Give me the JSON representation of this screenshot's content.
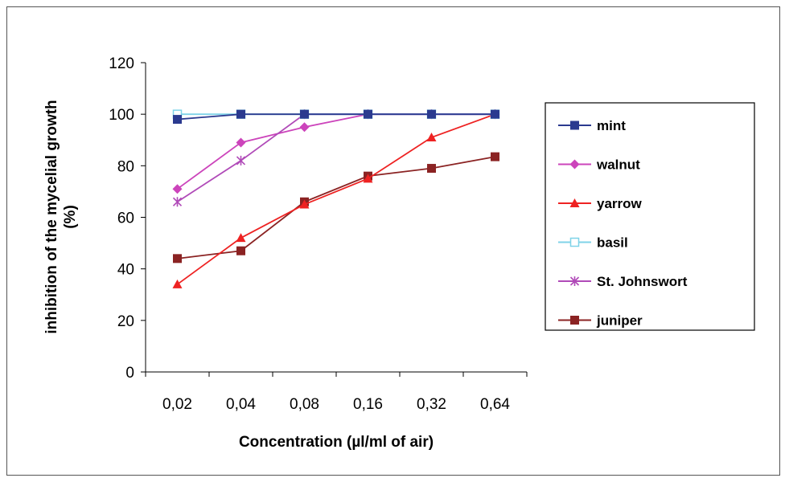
{
  "chart_data": {
    "type": "line",
    "title": "",
    "xlabel": "Concentration (µl/ml of air)",
    "ylabel": "inhibition of the mycelial growth (%)",
    "ylabel_lines": [
      "inhibition of the mycelial growth",
      "(%)"
    ],
    "categories": [
      "0,02",
      "0,04",
      "0,08",
      "0,16",
      "0,32",
      "0,64"
    ],
    "ylim": [
      0,
      120
    ],
    "yticks": [
      0,
      20,
      40,
      60,
      80,
      100,
      120
    ],
    "grid": false,
    "legend_position": "right",
    "series": [
      {
        "name": "mint",
        "color": "#2b3a8f",
        "marker": "square",
        "values": [
          98,
          100,
          100,
          100,
          100,
          100
        ]
      },
      {
        "name": "walnut",
        "color": "#cc44bb",
        "marker": "diamond",
        "values": [
          71,
          89,
          95,
          100,
          100,
          100
        ]
      },
      {
        "name": "yarrow",
        "color": "#ee2222",
        "marker": "triangle",
        "values": [
          34,
          52,
          65,
          75,
          91,
          100
        ]
      },
      {
        "name": "basil",
        "color": "#7fd3e8",
        "marker": "open-square",
        "values": [
          100,
          100,
          100,
          100,
          100,
          100
        ]
      },
      {
        "name": "St. Johnswort",
        "color": "#b04ab8",
        "marker": "star",
        "values": [
          66,
          82,
          100,
          100,
          100,
          100
        ]
      },
      {
        "name": "juniper",
        "color": "#8b2323",
        "marker": "square",
        "values": [
          44,
          47,
          66,
          76,
          79,
          83.5
        ]
      }
    ]
  }
}
